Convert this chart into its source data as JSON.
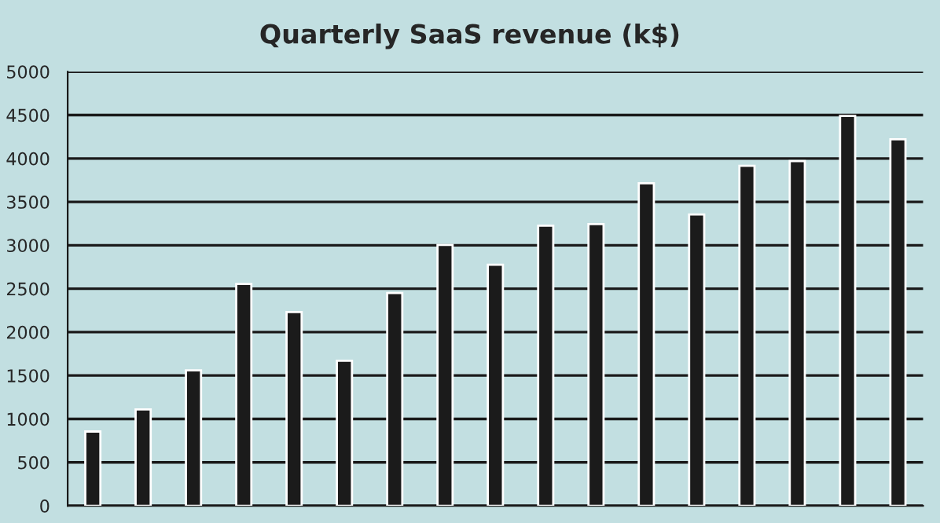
{
  "chart_data": {
    "type": "bar",
    "title": "Quarterly SaaS revenue (k$)",
    "categories": [
      null,
      null,
      null,
      null,
      null,
      null,
      null,
      null,
      null,
      null,
      null,
      null,
      null,
      null,
      null,
      null,
      null
    ],
    "values": [
      855,
      1110,
      1560,
      2555,
      2230,
      1670,
      2450,
      3005,
      2775,
      3225,
      3245,
      3715,
      3355,
      3915,
      3970,
      4490,
      4220
    ],
    "color": "#1b1b1b",
    "ylim": [
      0,
      5000
    ],
    "yticks": [
      0,
      500,
      1000,
      1500,
      2000,
      2500,
      3000,
      3500,
      4000,
      4500,
      5000
    ],
    "grid": "y",
    "legend": false,
    "tick_labels": "y"
  }
}
